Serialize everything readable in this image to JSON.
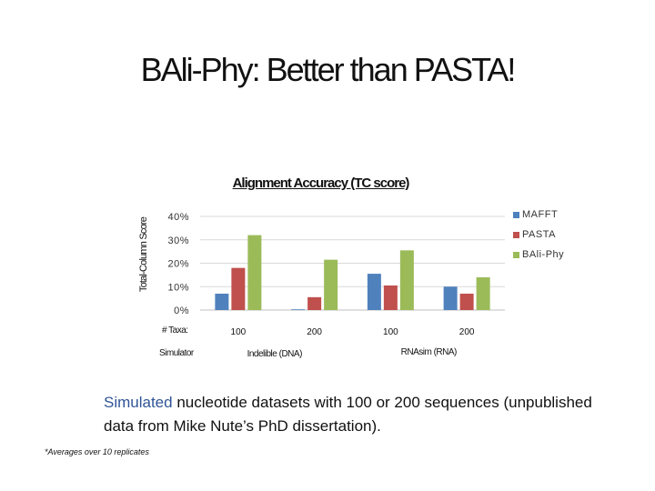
{
  "slide": {
    "title": "BAli-Phy: Better than PASTA!",
    "caption_highlight": "Simulated",
    "caption_rest": " nucleotide datasets with  100 or 200 sequences (unpublished data from Mike Nute’s PhD dissertation).",
    "footnote": "*Averages over 10 replicates"
  },
  "chart_data": {
    "type": "bar",
    "title": "Alignment Accuracy (TC score)",
    "ylabel": "Total-Column Score",
    "ylim": [
      0,
      40
    ],
    "yticks": [
      "0%",
      "10%",
      "20%",
      "30%",
      "40%"
    ],
    "grid": true,
    "legend_position": "right",
    "categories": [
      "100",
      "200",
      "100",
      "200"
    ],
    "category_row_label": "# Taxa:",
    "simulator_row_label": "Simulator",
    "groups": [
      {
        "label": "Indelible (DNA)",
        "span": [
          0,
          1
        ]
      },
      {
        "label": "RNAsim (RNA)",
        "span": [
          2,
          3
        ]
      }
    ],
    "series": [
      {
        "name": "MAFFT",
        "color": "#4f81bd",
        "values": [
          7,
          0.3,
          15.5,
          10
        ]
      },
      {
        "name": "PASTA",
        "color": "#c0504d",
        "values": [
          18,
          5.5,
          10.5,
          7
        ]
      },
      {
        "name": "BAli-Phy",
        "color": "#9bbb59",
        "values": [
          32,
          21.5,
          25.5,
          14
        ]
      }
    ]
  }
}
